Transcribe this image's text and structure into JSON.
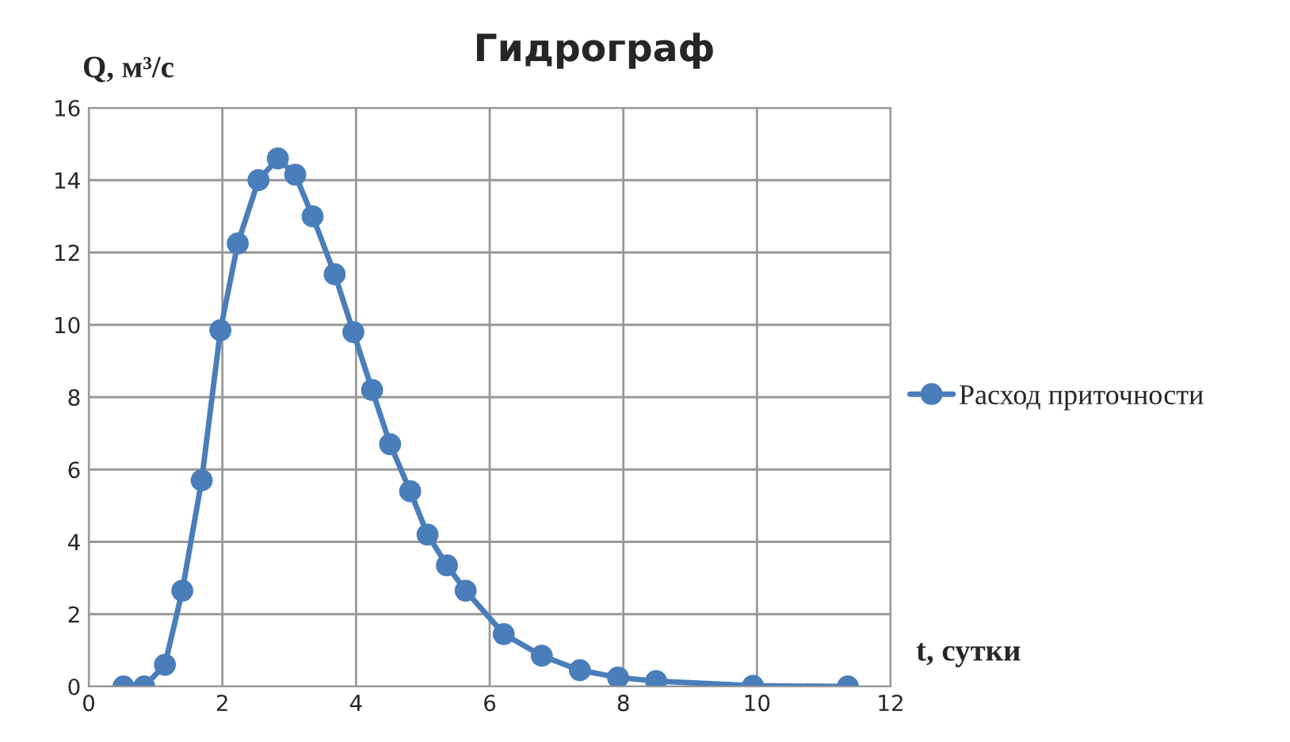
{
  "chart_data": {
    "type": "line",
    "title": "Гидрограф",
    "ylabel": "Q, м³/с",
    "xlabel": "t, сутки",
    "xlim": [
      0,
      12
    ],
    "xticks": [
      0,
      2,
      4,
      6,
      8,
      10,
      12
    ],
    "ylim": [
      0,
      16
    ],
    "yticks": [
      0,
      2,
      4,
      6,
      8,
      10,
      12,
      14,
      16
    ],
    "grid": true,
    "legend": "right",
    "marker": "circle",
    "line_style": "solid",
    "series": [
      {
        "name": "Расход приточности",
        "color": "#4a7ebb",
        "x": [
          0.52,
          0.83,
          1.14,
          1.4,
          1.69,
          1.97,
          2.23,
          2.54,
          2.83,
          3.09,
          3.35,
          3.68,
          3.96,
          4.24,
          4.51,
          4.81,
          5.07,
          5.36,
          5.64,
          6.21,
          6.78,
          7.35,
          7.92,
          8.49,
          9.94,
          11.36
        ],
        "values": [
          0,
          0,
          0.6,
          2.65,
          5.7,
          9.85,
          12.25,
          14,
          14.6,
          14.15,
          13,
          11.4,
          9.8,
          8.2,
          6.7,
          5.4,
          4.2,
          3.35,
          2.65,
          1.45,
          0.85,
          0.45,
          0.25,
          0.15,
          0.02,
          0
        ]
      }
    ]
  }
}
